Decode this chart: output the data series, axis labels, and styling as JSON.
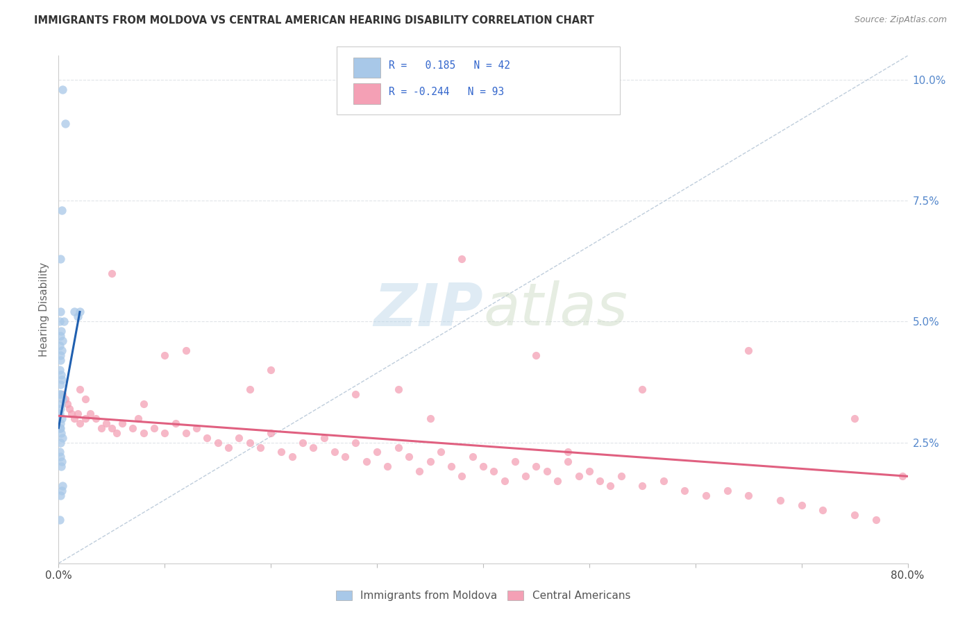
{
  "title": "IMMIGRANTS FROM MOLDOVA VS CENTRAL AMERICAN HEARING DISABILITY CORRELATION CHART",
  "source": "Source: ZipAtlas.com",
  "ylabel": "Hearing Disability",
  "xlim": [
    0.0,
    80.0
  ],
  "ylim": [
    0.0,
    10.5
  ],
  "yticks": [
    2.5,
    5.0,
    7.5,
    10.0
  ],
  "xticks": [
    0.0,
    10.0,
    20.0,
    30.0,
    40.0,
    50.0,
    60.0,
    70.0,
    80.0
  ],
  "legend_label_blue": "Immigrants from Moldova",
  "legend_label_pink": "Central Americans",
  "watermark_zip": "ZIP",
  "watermark_atlas": "atlas",
  "blue_scatter_x": [
    0.4,
    0.6,
    0.3,
    0.2,
    0.15,
    0.1,
    0.25,
    0.2,
    0.35,
    0.1,
    0.3,
    0.15,
    0.2,
    0.1,
    0.25,
    0.3,
    0.2,
    0.15,
    0.1,
    0.4,
    0.25,
    0.2,
    0.1,
    0.3,
    0.2,
    0.15,
    0.1,
    0.25,
    0.35,
    0.2,
    0.1,
    0.15,
    0.3,
    0.25,
    1.5,
    0.5,
    1.8,
    2.0,
    0.4,
    0.3,
    0.2,
    0.1
  ],
  "blue_scatter_y": [
    9.8,
    9.1,
    7.3,
    6.3,
    5.2,
    5.0,
    4.8,
    4.7,
    4.6,
    4.5,
    4.4,
    4.3,
    4.2,
    4.0,
    3.9,
    3.8,
    3.7,
    3.5,
    3.5,
    3.4,
    3.3,
    3.2,
    3.1,
    3.0,
    2.9,
    2.8,
    2.8,
    2.7,
    2.6,
    2.5,
    2.3,
    2.2,
    2.1,
    2.0,
    5.2,
    5.0,
    5.1,
    5.2,
    1.6,
    1.5,
    1.4,
    0.9
  ],
  "pink_scatter_x": [
    0.4,
    0.6,
    0.8,
    1.0,
    1.2,
    1.5,
    1.8,
    2.0,
    2.5,
    3.0,
    3.5,
    4.0,
    4.5,
    5.0,
    5.5,
    6.0,
    7.0,
    7.5,
    8.0,
    9.0,
    10.0,
    11.0,
    12.0,
    13.0,
    14.0,
    15.0,
    16.0,
    17.0,
    18.0,
    19.0,
    20.0,
    21.0,
    22.0,
    23.0,
    24.0,
    25.0,
    26.0,
    27.0,
    28.0,
    29.0,
    30.0,
    31.0,
    32.0,
    33.0,
    34.0,
    35.0,
    36.0,
    37.0,
    38.0,
    39.0,
    40.0,
    41.0,
    42.0,
    43.0,
    44.0,
    45.0,
    46.0,
    47.0,
    48.0,
    49.0,
    50.0,
    51.0,
    52.0,
    53.0,
    55.0,
    57.0,
    59.0,
    61.0,
    63.0,
    65.0,
    68.0,
    70.0,
    72.0,
    75.0,
    77.0,
    79.5,
    38.0,
    28.0,
    10.0,
    5.0,
    2.5,
    2.0,
    18.0,
    32.0,
    45.0,
    55.0,
    65.0,
    75.0,
    8.0,
    12.0,
    20.0,
    35.0,
    48.0
  ],
  "pink_scatter_y": [
    3.5,
    3.4,
    3.3,
    3.2,
    3.1,
    3.0,
    3.1,
    2.9,
    3.0,
    3.1,
    3.0,
    2.8,
    2.9,
    2.8,
    2.7,
    2.9,
    2.8,
    3.0,
    2.7,
    2.8,
    2.7,
    2.9,
    2.7,
    2.8,
    2.6,
    2.5,
    2.4,
    2.6,
    2.5,
    2.4,
    2.7,
    2.3,
    2.2,
    2.5,
    2.4,
    2.6,
    2.3,
    2.2,
    2.5,
    2.1,
    2.3,
    2.0,
    2.4,
    2.2,
    1.9,
    2.1,
    2.3,
    2.0,
    1.8,
    2.2,
    2.0,
    1.9,
    1.7,
    2.1,
    1.8,
    2.0,
    1.9,
    1.7,
    2.1,
    1.8,
    1.9,
    1.7,
    1.6,
    1.8,
    1.6,
    1.7,
    1.5,
    1.4,
    1.5,
    1.4,
    1.3,
    1.2,
    1.1,
    1.0,
    0.9,
    1.8,
    6.3,
    3.5,
    4.3,
    6.0,
    3.4,
    3.6,
    3.6,
    3.6,
    4.3,
    3.6,
    4.4,
    3.0,
    3.3,
    4.4,
    4.0,
    3.0,
    2.3
  ],
  "blue_line_x": [
    0.0,
    2.0
  ],
  "blue_line_y": [
    2.8,
    5.2
  ],
  "pink_line_x": [
    0.0,
    80.0
  ],
  "pink_line_y": [
    3.05,
    1.8
  ],
  "diag_line_x": [
    0.0,
    80.0
  ],
  "diag_line_y": [
    0.0,
    10.5
  ],
  "blue_dot_color": "#a8c8e8",
  "pink_dot_color": "#f4a0b5",
  "blue_line_color": "#2060b0",
  "pink_line_color": "#e06080",
  "diag_line_color": "#b8c8d8",
  "grid_color": "#e0e4e8",
  "right_tick_color": "#5588cc",
  "background_color": "#ffffff"
}
